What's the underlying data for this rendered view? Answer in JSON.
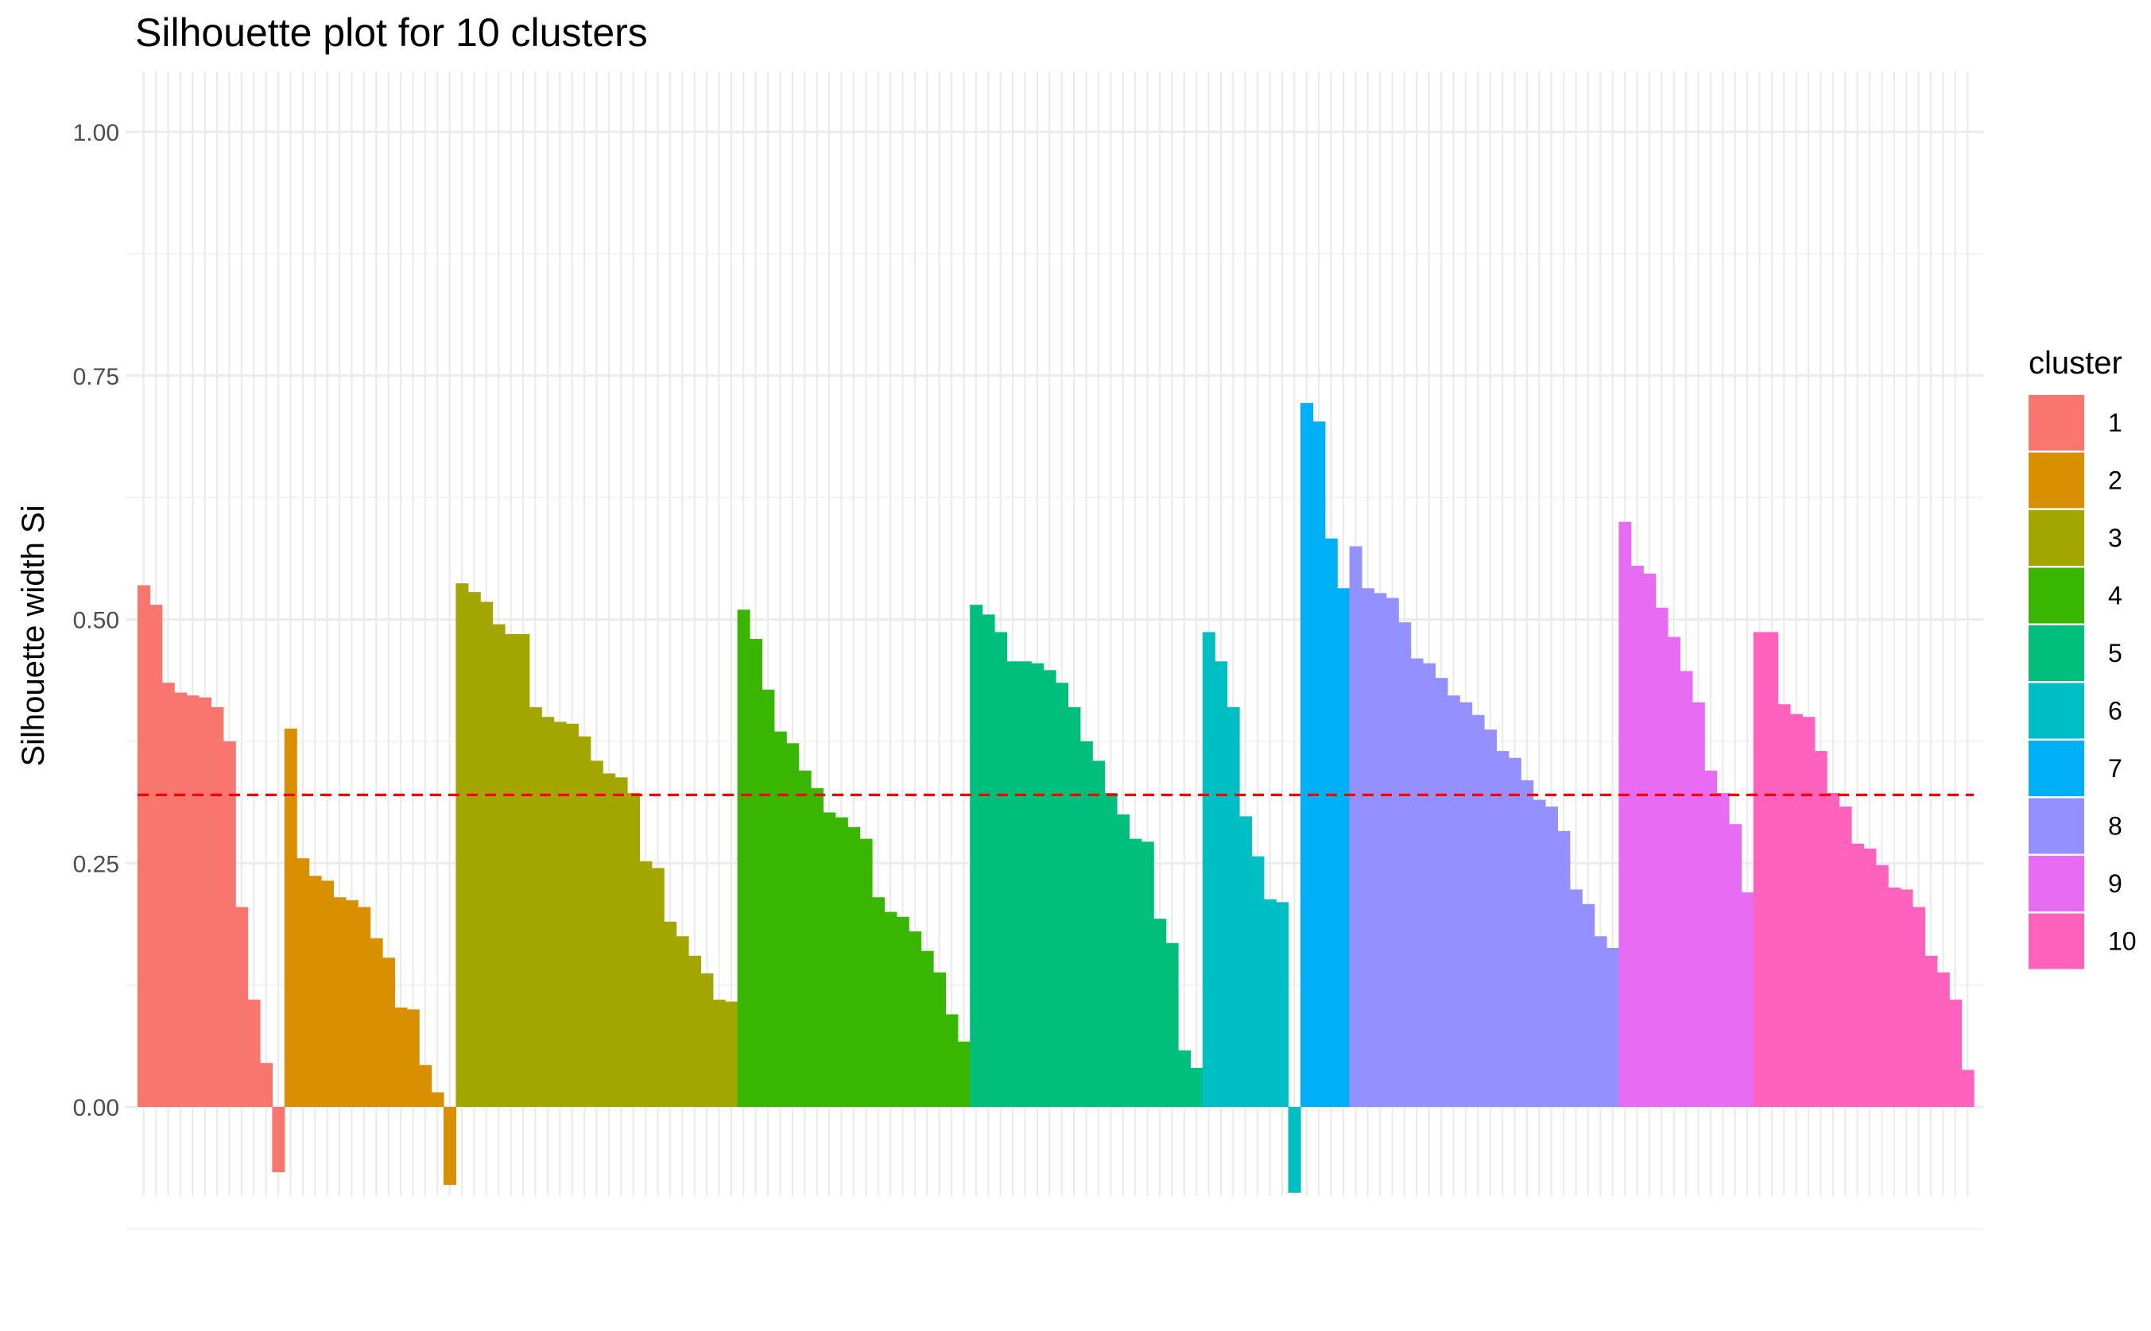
{
  "chart_data": {
    "type": "bar",
    "title": "Silhouette plot for 10 clusters",
    "xlabel": "",
    "ylabel": "Silhouette width Si",
    "ylim": [
      -0.12,
      1.05
    ],
    "yticks": [
      "0.00",
      "0.25",
      "0.50",
      "0.75",
      "1.00"
    ],
    "reference_line": {
      "value": 0.32,
      "color": "#ff0000",
      "style": "dashed"
    },
    "legend": {
      "title": "cluster",
      "position": "right"
    },
    "grid": true,
    "x_tick_labels_overlapping": true,
    "clusters": [
      {
        "name": "1",
        "color": "#F8766D",
        "values": [
          0.535,
          0.515,
          0.435,
          0.425,
          0.422,
          0.42,
          0.41,
          0.375,
          0.205,
          0.11,
          0.045,
          -0.067
        ]
      },
      {
        "name": "2",
        "color": "#D89000",
        "values": [
          0.388,
          0.255,
          0.237,
          0.232,
          0.215,
          0.212,
          0.205,
          0.173,
          0.153,
          0.102,
          0.1,
          0.043,
          0.015,
          -0.08
        ]
      },
      {
        "name": "3",
        "color": "#A3A500",
        "values": [
          0.537,
          0.528,
          0.518,
          0.495,
          0.485,
          0.485,
          0.41,
          0.4,
          0.395,
          0.393,
          0.38,
          0.355,
          0.342,
          0.338,
          0.322,
          0.252,
          0.245,
          0.19,
          0.175,
          0.155,
          0.137,
          0.11,
          0.108
        ]
      },
      {
        "name": "4",
        "color": "#39B600",
        "values": [
          0.51,
          0.48,
          0.428,
          0.385,
          0.373,
          0.345,
          0.327,
          0.302,
          0.297,
          0.287,
          0.275,
          0.215,
          0.2,
          0.195,
          0.18,
          0.16,
          0.138,
          0.095,
          0.067
        ]
      },
      {
        "name": "5",
        "color": "#00BF7D",
        "values": [
          0.515,
          0.505,
          0.487,
          0.457,
          0.457,
          0.455,
          0.448,
          0.435,
          0.41,
          0.375,
          0.355,
          0.322,
          0.3,
          0.275,
          0.272,
          0.193,
          0.168,
          0.058,
          0.04
        ]
      },
      {
        "name": "6",
        "color": "#00BFC4",
        "values": [
          0.487,
          0.457,
          0.41,
          0.298,
          0.257,
          0.213,
          0.21,
          -0.088
        ]
      },
      {
        "name": "7",
        "color": "#00B0F6",
        "values": [
          0.722,
          0.703,
          0.583,
          0.532
        ]
      },
      {
        "name": "8",
        "color": "#9590FF",
        "values": [
          0.575,
          0.532,
          0.527,
          0.522,
          0.497,
          0.46,
          0.455,
          0.44,
          0.422,
          0.415,
          0.402,
          0.387,
          0.365,
          0.358,
          0.335,
          0.315,
          0.308,
          0.283,
          0.223,
          0.208,
          0.175,
          0.163
        ]
      },
      {
        "name": "9",
        "color": "#E76BF3",
        "values": [
          0.6,
          0.555,
          0.547,
          0.512,
          0.482,
          0.447,
          0.415,
          0.345,
          0.322,
          0.29,
          0.22
        ]
      },
      {
        "name": "10",
        "color": "#FF62BC",
        "values": [
          0.487,
          0.487,
          0.413,
          0.403,
          0.4,
          0.365,
          0.322,
          0.308,
          0.27,
          0.265,
          0.248,
          0.225,
          0.223,
          0.205,
          0.155,
          0.138,
          0.11,
          0.038
        ]
      }
    ]
  }
}
